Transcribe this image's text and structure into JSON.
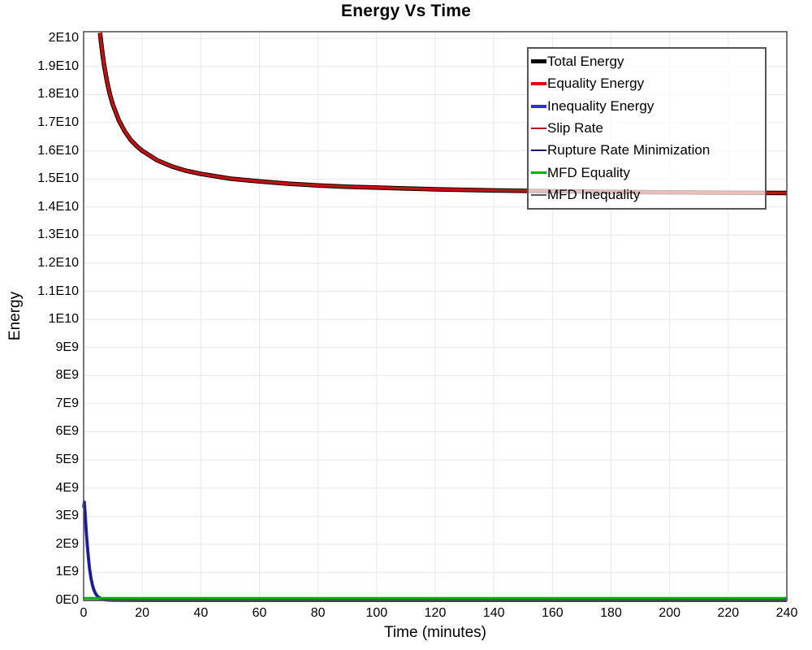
{
  "chart_data": {
    "type": "line",
    "title": "Energy Vs Time",
    "xlabel": "Time (minutes)",
    "ylabel": "Energy",
    "xlim": [
      0,
      240
    ],
    "ylim": [
      0,
      20240000000.0
    ],
    "grid": true,
    "legend_position": "top-right",
    "x_ticks": [
      0,
      20,
      40,
      60,
      80,
      100,
      120,
      140,
      160,
      180,
      200,
      220,
      240
    ],
    "y_tick_values": [
      0,
      1000000000.0,
      2000000000.0,
      3000000000.0,
      4000000000.0,
      5000000000.0,
      6000000000.0,
      7000000000.0,
      8000000000.0,
      9000000000.0,
      10000000000.0,
      11000000000.0,
      12000000000.0,
      13000000000.0,
      14000000000.0,
      15000000000.0,
      16000000000.0,
      17000000000.0,
      18000000000.0,
      19000000000.0,
      20000000000.0
    ],
    "y_tick_labels": [
      "0E0",
      "1E9",
      "2E9",
      "3E9",
      "4E9",
      "5E9",
      "6E9",
      "7E9",
      "8E9",
      "9E9",
      "1E10",
      "1.1E10",
      "1.2E10",
      "1.3E10",
      "1.4E10",
      "1.5E10",
      "1.6E10",
      "1.7E10",
      "1.8E10",
      "1.9E10",
      "2E10"
    ],
    "colors": {
      "grid": "#e8e8e8",
      "frame": "#4d4d4d",
      "background": "#ffffff",
      "text": "#000000"
    },
    "draw_order": [
      0,
      1,
      3,
      2,
      4,
      6,
      5
    ],
    "series": [
      {
        "name": "Total Energy",
        "color": "#000000",
        "width": 5.5,
        "x": [
          5.6,
          6,
          6.5,
          7,
          8,
          9,
          10,
          12,
          14,
          16,
          18,
          20,
          25,
          30,
          35,
          40,
          50,
          60,
          70,
          80,
          90,
          100,
          120,
          140,
          160,
          180,
          200,
          220,
          240
        ],
        "y": [
          20200000000.0,
          19810000000.0,
          19390000000.0,
          19030000000.0,
          18450000000.0,
          17990000000.0,
          17630000000.0,
          17090000000.0,
          16700000000.0,
          16400000000.0,
          16180000000.0,
          16000000000.0,
          15670000000.0,
          15450000000.0,
          15290000000.0,
          15180000000.0,
          15010000000.0,
          14910000000.0,
          14830000000.0,
          14770000000.0,
          14720000000.0,
          14690000000.0,
          14630000000.0,
          14590000000.0,
          14560000000.0,
          14540000000.0,
          14520000000.0,
          14510000000.0,
          14500000000.0
        ]
      },
      {
        "name": "Equality Energy",
        "color": "#e60000",
        "width": 3.5,
        "x": [
          5.6,
          6,
          6.5,
          7,
          8,
          9,
          10,
          12,
          14,
          16,
          18,
          20,
          25,
          30,
          35,
          40,
          50,
          60,
          70,
          80,
          90,
          100,
          120,
          140,
          160,
          180,
          200,
          220,
          240
        ],
        "y": [
          20200000000.0,
          19810000000.0,
          19390000000.0,
          19030000000.0,
          18450000000.0,
          17990000000.0,
          17630000000.0,
          17090000000.0,
          16700000000.0,
          16400000000.0,
          16180000000.0,
          16000000000.0,
          15670000000.0,
          15450000000.0,
          15290000000.0,
          15180000000.0,
          15010000000.0,
          14910000000.0,
          14830000000.0,
          14770000000.0,
          14720000000.0,
          14690000000.0,
          14630000000.0,
          14590000000.0,
          14560000000.0,
          14540000000.0,
          14520000000.0,
          14510000000.0,
          14500000000.0
        ]
      },
      {
        "name": "Inequality Energy",
        "color": "#3030cc",
        "width": 4,
        "x": [
          0,
          0.25,
          0.5,
          0.8,
          1,
          1.3,
          1.6,
          2,
          2.5,
          3,
          3.5,
          4,
          4.5,
          5,
          6,
          7,
          8,
          10,
          15,
          20,
          240
        ],
        "y": [
          3300000000.0,
          3500000000.0,
          3100000000.0,
          2600000000.0,
          2300000000.0,
          1900000000.0,
          1550000000.0,
          1150000000.0,
          800000000.0,
          550000000.0,
          380000000.0,
          260000000.0,
          180000000.0,
          120000000.0,
          60000000.0,
          30000000.0,
          15000000.0,
          6000000.0,
          2000000.0,
          1000000.0,
          1000000.0
        ]
      },
      {
        "name": "Slip Rate",
        "color": "#aa1c1c",
        "width": 1.7,
        "x": [
          5.6,
          6,
          6.5,
          7,
          8,
          9,
          10,
          12,
          14,
          16,
          18,
          20,
          25,
          30,
          35,
          40,
          50,
          60,
          70,
          80,
          90,
          100,
          120,
          140,
          160,
          180,
          200,
          220,
          240
        ],
        "y": [
          20200000000.0,
          19810000000.0,
          19390000000.0,
          19030000000.0,
          18450000000.0,
          17990000000.0,
          17630000000.0,
          17090000000.0,
          16700000000.0,
          16400000000.0,
          16180000000.0,
          16000000000.0,
          15670000000.0,
          15450000000.0,
          15290000000.0,
          15180000000.0,
          15010000000.0,
          14910000000.0,
          14830000000.0,
          14770000000.0,
          14720000000.0,
          14690000000.0,
          14630000000.0,
          14590000000.0,
          14560000000.0,
          14540000000.0,
          14520000000.0,
          14510000000.0,
          14500000000.0
        ]
      },
      {
        "name": "Rupture Rate Minimization",
        "color": "#16166b",
        "width": 1.8,
        "x": [
          0,
          0.25,
          0.5,
          0.8,
          1,
          1.3,
          1.6,
          2,
          2.5,
          3,
          3.5,
          4,
          4.5,
          5,
          6,
          7,
          8,
          10,
          15,
          20,
          240
        ],
        "y": [
          3300000000.0,
          3500000000.0,
          3100000000.0,
          2600000000.0,
          2300000000.0,
          1900000000.0,
          1550000000.0,
          1150000000.0,
          800000000.0,
          550000000.0,
          380000000.0,
          260000000.0,
          180000000.0,
          120000000.0,
          60000000.0,
          30000000.0,
          15000000.0,
          6000000.0,
          2000000.0,
          1000000.0,
          1000000.0
        ]
      },
      {
        "name": "MFD Equality",
        "color": "#00ad00",
        "width": 3,
        "x": [
          0,
          240
        ],
        "y": [
          80000000.0,
          80000000.0
        ]
      },
      {
        "name": "MFD Inequality",
        "color": "#5a5a5a",
        "width": 1.6,
        "x": [
          0,
          240
        ],
        "y": [
          0,
          0
        ]
      }
    ]
  }
}
